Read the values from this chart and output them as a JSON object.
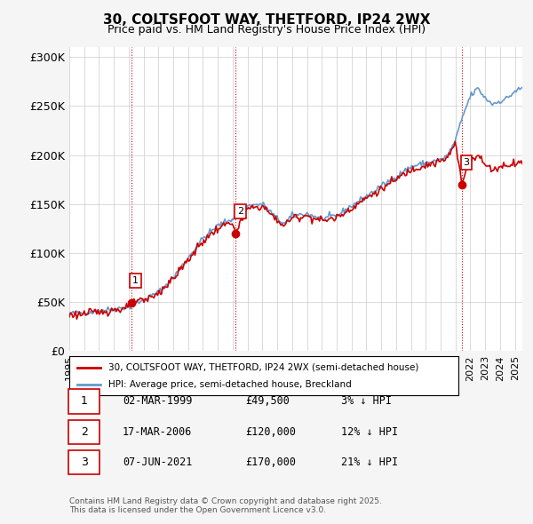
{
  "title_line1": "30, COLTSFOOT WAY, THETFORD, IP24 2WX",
  "title_line2": "Price paid vs. HM Land Registry's House Price Index (HPI)",
  "ylabel": "",
  "xlabel": "",
  "ylim": [
    0,
    310000
  ],
  "yticks": [
    0,
    50000,
    100000,
    150000,
    200000,
    250000,
    300000
  ],
  "ytick_labels": [
    "£0",
    "£50K",
    "£100K",
    "£150K",
    "£200K",
    "£250K",
    "£300K"
  ],
  "xlim_start": 1995.0,
  "xlim_end": 2025.5,
  "xtick_years": [
    1995,
    1996,
    1997,
    1998,
    1999,
    2000,
    2001,
    2002,
    2003,
    2004,
    2005,
    2006,
    2007,
    2008,
    2009,
    2010,
    2011,
    2012,
    2013,
    2014,
    2015,
    2016,
    2017,
    2018,
    2019,
    2020,
    2021,
    2022,
    2023,
    2024,
    2025
  ],
  "sale_color": "#cc0000",
  "hpi_color": "#6699cc",
  "grid_color": "#cccccc",
  "background_color": "#f5f5f5",
  "plot_bg_color": "#ffffff",
  "sale_dates": [
    1999.17,
    2006.21,
    2021.43
  ],
  "sale_prices": [
    49500,
    120000,
    170000
  ],
  "sale_labels": [
    "1",
    "2",
    "3"
  ],
  "table_rows": [
    [
      "1",
      "02-MAR-1999",
      "£49,500",
      "3% ↓ HPI"
    ],
    [
      "2",
      "17-MAR-2006",
      "£120,000",
      "12% ↓ HPI"
    ],
    [
      "3",
      "07-JUN-2021",
      "£170,000",
      "21% ↓ HPI"
    ]
  ],
  "legend_line1": "30, COLTSFOOT WAY, THETFORD, IP24 2WX (semi-detached house)",
  "legend_line2": "HPI: Average price, semi-detached house, Breckland",
  "footer": "Contains HM Land Registry data © Crown copyright and database right 2025.\nThis data is licensed under the Open Government Licence v3.0.",
  "vline_color": "#cc0000",
  "vline_style": "dotted"
}
